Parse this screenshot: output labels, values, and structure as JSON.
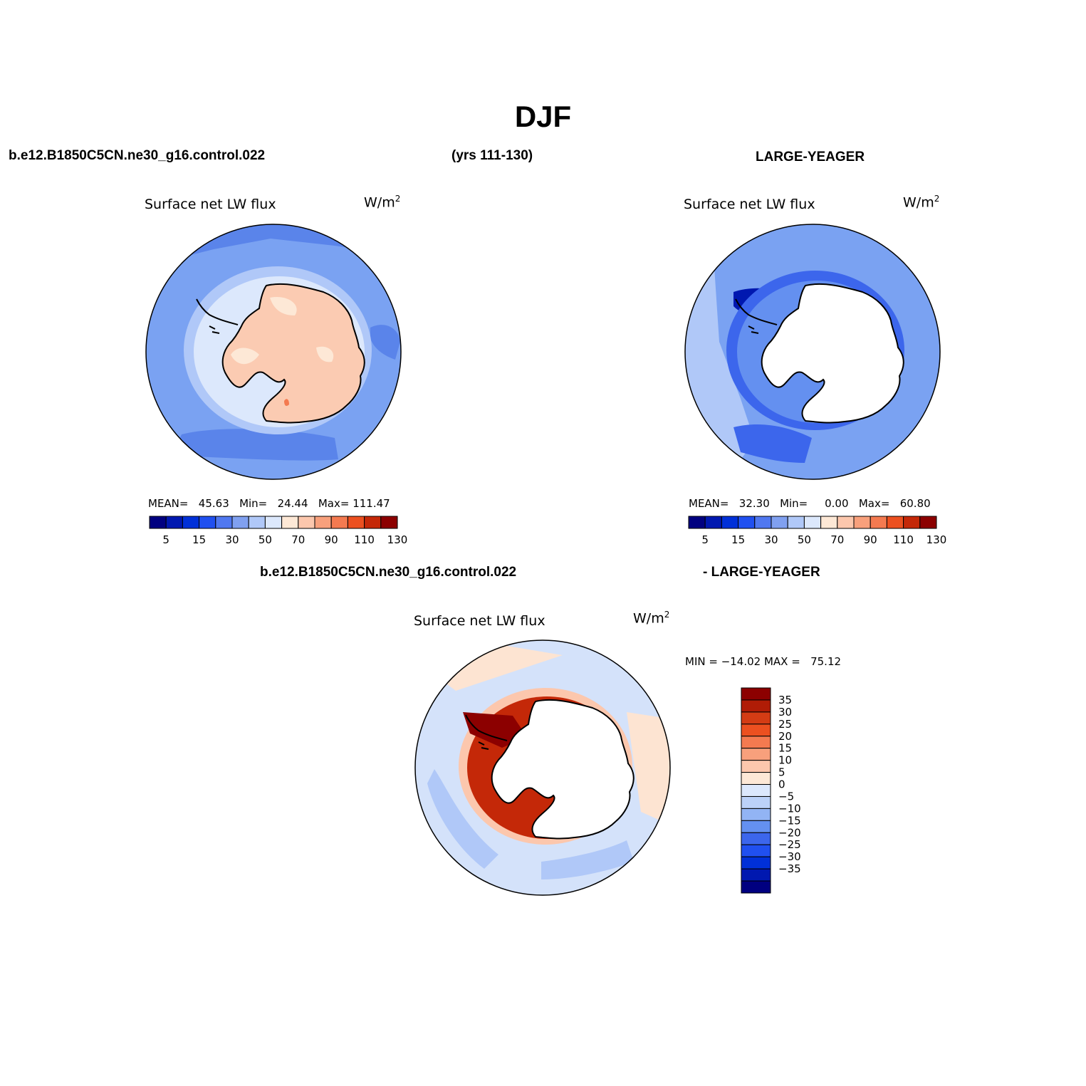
{
  "figure": {
    "title": "DJF",
    "case_name": "b.e12.B1850C5CN.ne30_g16.control.022",
    "years": "(yrs 111-130)",
    "obs_name": "LARGE-YEAGER",
    "diff_case_name": "b.e12.B1850C5CN.ne30_g16.control.022",
    "diff_obs_name": "- LARGE-YEAGER"
  },
  "panels": {
    "model": {
      "title": "Surface net LW flux",
      "units_base": "W/m",
      "units_exp": "2",
      "mean_label": "MEAN=",
      "mean_value": "45.63",
      "min_label": "Min=",
      "min_value": "24.44",
      "max_label": "Max=",
      "max_value": "111.47"
    },
    "obs": {
      "title": "Surface net LW flux",
      "units_base": "W/m",
      "units_exp": "2",
      "mean_label": "MEAN=",
      "mean_value": "32.30",
      "min_label": "Min=",
      "min_value": "0.00",
      "max_label": "Max=",
      "max_value": "60.80"
    },
    "diff": {
      "title": "Surface net LW flux",
      "units_base": "W/m",
      "units_exp": "2",
      "minmax_text": "MIN = −14.02 MAX =   75.12"
    }
  },
  "colors": {
    "abs_bar": [
      "#000080",
      "#0018b0",
      "#0030d8",
      "#2050f0",
      "#5078f0",
      "#80a0f0",
      "#b0c8f8",
      "#dce8fc",
      "#fde8d6",
      "#fcc7ad",
      "#f8a07c",
      "#f47a50",
      "#ec5020",
      "#c42808",
      "#8c0000"
    ],
    "diff_bar": [
      "#000080",
      "#0018b0",
      "#0030d8",
      "#2050f0",
      "#3c66ec",
      "#6490f0",
      "#92b4f4",
      "#bcd2f8",
      "#dce8fc",
      "#fde8d6",
      "#fcc7ad",
      "#f8a07c",
      "#f47a50",
      "#ec5020",
      "#d43c14",
      "#b01c06",
      "#8c0000"
    ],
    "ocean_model": "#7aa2f2",
    "ocean_model_dark": "#5a84ea",
    "land_model": "#fbcbb2",
    "land_model_light": "#fde8d6",
    "ocean_obs": "#7aa2f2",
    "ocean_obs_light": "#b0c8f8",
    "ocean_obs_dark": "#3c66ec",
    "ocean_diff": "#d4e2fa",
    "ocean_diff_blue": "#b0c8f8",
    "ocean_diff_warm": "#fde4d2",
    "diff_ring": "#c42808"
  },
  "chart_data": [
    {
      "type": "heatmap",
      "title": "Surface net LW flux",
      "subtitle": "b.e12.B1850C5CN.ne30_g16.control.022 (yrs 111-130)",
      "units": "W/m2",
      "colorbar_ticks": [
        "5",
        "15",
        "30",
        "50",
        "70",
        "90",
        "110",
        "130"
      ],
      "stats": {
        "mean": 45.63,
        "min": 24.44,
        "max": 111.47
      }
    },
    {
      "type": "heatmap",
      "title": "Surface net LW flux",
      "subtitle": "LARGE-YEAGER",
      "units": "W/m2",
      "colorbar_ticks": [
        "5",
        "15",
        "30",
        "50",
        "70",
        "90",
        "110",
        "130"
      ],
      "stats": {
        "mean": 32.3,
        "min": 0.0,
        "max": 60.8
      }
    },
    {
      "type": "heatmap",
      "title": "Surface net LW flux",
      "subtitle": "b.e12.B1850C5CN.ne30_g16.control.022 - LARGE-YEAGER",
      "units": "W/m2",
      "colorbar_ticks": [
        "35",
        "30",
        "25",
        "20",
        "15",
        "10",
        "5",
        "0",
        "−5",
        "−10",
        "−15",
        "−20",
        "−25",
        "−30",
        "−35"
      ],
      "stats": {
        "min": -14.02,
        "max": 75.12
      }
    }
  ]
}
